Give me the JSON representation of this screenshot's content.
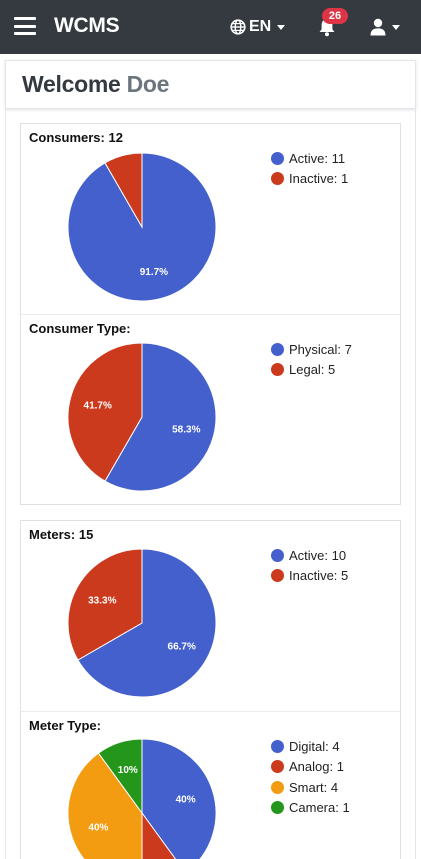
{
  "navbar": {
    "brand": "WCMS",
    "language": "EN",
    "notification_count": "26",
    "icons": [
      "menu-icon",
      "globe-icon",
      "bell-icon",
      "user-icon",
      "chevron-down-icon"
    ],
    "background": "#343a40",
    "badge_color": "#dc3545"
  },
  "welcome": {
    "greeting": "Welcome",
    "name": "Doe"
  },
  "colors": {
    "blue": "#4460CC",
    "red": "#CC3A1E",
    "orange": "#F39C12",
    "green": "#24961B"
  },
  "chart_data": [
    {
      "type": "pie",
      "title": "Consumers: 12",
      "legend": [
        "Active: 11",
        "Inactive: 1"
      ],
      "categories": [
        "Active",
        "Inactive"
      ],
      "values": [
        11,
        1
      ],
      "colors": [
        "#4460CC",
        "#CC3A1E"
      ],
      "labels": [
        "91.7%",
        ""
      ],
      "legend_position": "right"
    },
    {
      "type": "pie",
      "title": "Consumer Type:",
      "legend": [
        "Physical: 7",
        "Legal: 5"
      ],
      "categories": [
        "Physical",
        "Legal"
      ],
      "values": [
        7,
        5
      ],
      "colors": [
        "#4460CC",
        "#CC3A1E"
      ],
      "labels": [
        "58.3%",
        "41.7%"
      ],
      "legend_position": "right"
    },
    {
      "type": "pie",
      "title": "Meters: 15",
      "legend": [
        "Active: 10",
        "Inactive: 5"
      ],
      "categories": [
        "Active",
        "Inactive"
      ],
      "values": [
        10,
        5
      ],
      "colors": [
        "#4460CC",
        "#CC3A1E"
      ],
      "labels": [
        "66.7%",
        "33.3%"
      ],
      "legend_position": "right"
    },
    {
      "type": "pie",
      "title": "Meter Type:",
      "legend": [
        "Digital: 4",
        "Analog: 1",
        "Smart: 4",
        "Camera: 1"
      ],
      "categories": [
        "Digital",
        "Analog",
        "Smart",
        "Camera"
      ],
      "values": [
        4,
        1,
        4,
        1
      ],
      "colors": [
        "#4460CC",
        "#CC3A1E",
        "#F39C12",
        "#24961B"
      ],
      "labels": [
        "40%",
        "",
        "40%",
        "10%"
      ],
      "legend_position": "right"
    }
  ]
}
